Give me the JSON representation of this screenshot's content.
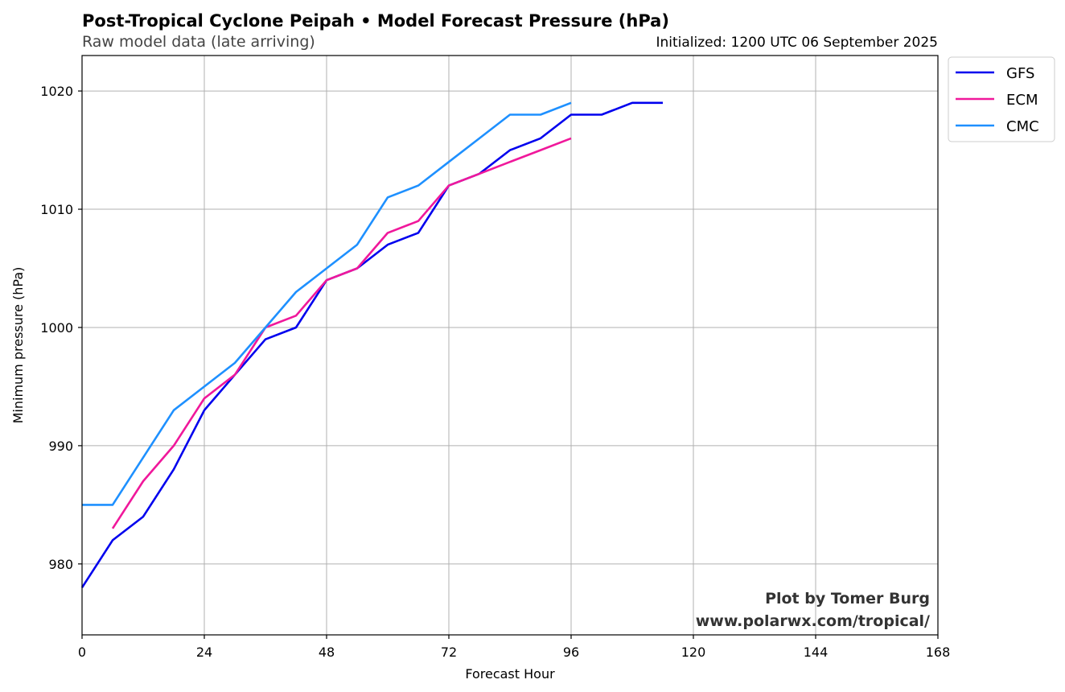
{
  "chart_data": {
    "type": "line",
    "title": "Post-Tropical Cyclone Peipah • Model Forecast Pressure (hPa)",
    "subtitle": "Raw model data (late arriving)",
    "init_text": "Initialized: 1200 UTC 06 September 2025",
    "xlabel": "Forecast Hour",
    "ylabel": "Minimum pressure (hPa)",
    "xlim": [
      0,
      168
    ],
    "ylim": [
      974,
      1023
    ],
    "xticks": [
      0,
      24,
      48,
      72,
      96,
      120,
      144,
      168
    ],
    "yticks": [
      980,
      990,
      1000,
      1010,
      1020
    ],
    "grid": true,
    "legend_position": "outside-top-right",
    "series": [
      {
        "name": "GFS",
        "color": "#0000ee",
        "x": [
          0,
          6,
          12,
          18,
          24,
          30,
          36,
          42,
          48,
          54,
          60,
          66,
          72,
          78,
          84,
          90,
          96,
          102,
          108,
          114
        ],
        "y": [
          978,
          982,
          984,
          988,
          993,
          996,
          999,
          1000,
          1004,
          1005,
          1007,
          1008,
          1012,
          1013,
          1015,
          1016,
          1018,
          1018,
          1019,
          1019
        ]
      },
      {
        "name": "ECM",
        "color": "#f0189b",
        "x": [
          6,
          12,
          18,
          24,
          30,
          36,
          42,
          48,
          54,
          60,
          66,
          72,
          78,
          84,
          90,
          96
        ],
        "y": [
          983,
          987,
          990,
          994,
          996,
          1000,
          1001,
          1004,
          1005,
          1008,
          1009,
          1012,
          1013,
          1014,
          1015,
          1016
        ]
      },
      {
        "name": "CMC",
        "color": "#1e90ff",
        "x": [
          0,
          6,
          12,
          18,
          24,
          30,
          36,
          42,
          48,
          54,
          60,
          66,
          72,
          78,
          84,
          90,
          96
        ],
        "y": [
          985,
          985,
          989,
          993,
          995,
          997,
          1000,
          1003,
          1005,
          1007,
          1011,
          1012,
          1014,
          1016,
          1018,
          1018,
          1019
        ]
      }
    ],
    "credit_line1": "Plot by Tomer Burg",
    "credit_line2": "www.polarwx.com/tropical/"
  }
}
